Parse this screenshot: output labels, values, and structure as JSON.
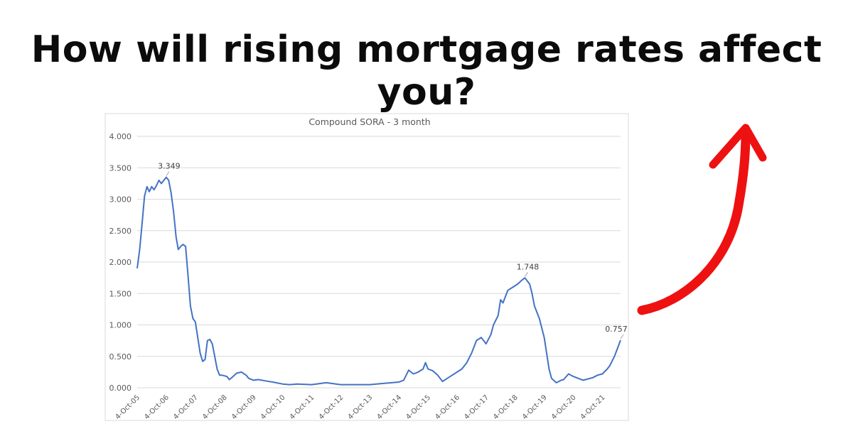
{
  "headline": "How will rising mortgage rates affect you?",
  "colors": {
    "line": "#4472c4",
    "arrow": "#ee1111",
    "grid": "#d9d9d9",
    "text": "#595959"
  },
  "chart_data": {
    "type": "line",
    "title": "Compound SORA - 3 month",
    "xlabel": "",
    "ylabel": "",
    "ylim": [
      0,
      4
    ],
    "yticks": [
      "0.000",
      "0.500",
      "1.000",
      "1.500",
      "2.000",
      "2.500",
      "3.000",
      "3.500",
      "4.000"
    ],
    "xlim": [
      "2005-10-04",
      "2022-05-20"
    ],
    "xticks": [
      "4-Oct-05",
      "4-Oct-06",
      "4-Oct-07",
      "4-Oct-08",
      "4-Oct-09",
      "4-Oct-10",
      "4-Oct-11",
      "4-Oct-12",
      "4-Oct-13",
      "4-Oct-14",
      "4-Oct-15",
      "4-Oct-16",
      "4-Oct-17",
      "4-Oct-18",
      "4-Oct-19",
      "4-Oct-20",
      "4-Oct-21"
    ],
    "grid": true,
    "legend": "none",
    "series": [
      {
        "x": [
          "2005-10-04",
          "2005-11-04",
          "2005-12-04",
          "2006-01-04",
          "2006-02-04",
          "2006-03-04",
          "2006-04-04",
          "2006-05-04",
          "2006-06-04",
          "2006-07-04",
          "2006-08-04",
          "2006-09-04",
          "2006-10-04",
          "2006-11-04",
          "2006-12-04",
          "2007-01-04",
          "2007-02-04",
          "2007-03-04",
          "2007-04-04",
          "2007-05-04",
          "2007-06-04",
          "2007-07-04",
          "2007-08-04",
          "2007-09-04",
          "2007-10-04",
          "2007-11-04",
          "2007-12-04",
          "2008-01-04",
          "2008-02-04",
          "2008-03-04",
          "2008-04-04",
          "2008-05-04",
          "2008-06-04",
          "2008-07-04",
          "2008-08-04",
          "2008-09-04",
          "2008-10-04",
          "2008-11-04",
          "2008-12-04",
          "2009-01-04",
          "2009-03-04",
          "2009-05-04",
          "2009-07-04",
          "2009-08-04",
          "2009-10-04",
          "2009-12-04",
          "2010-03-04",
          "2010-06-04",
          "2010-10-04",
          "2011-01-04",
          "2011-04-04",
          "2011-10-04",
          "2012-04-04",
          "2012-10-04",
          "2013-04-04",
          "2013-10-04",
          "2014-04-04",
          "2014-10-04",
          "2014-12-04",
          "2015-01-04",
          "2015-02-04",
          "2015-04-04",
          "2015-06-04",
          "2015-08-04",
          "2015-09-04",
          "2015-10-04",
          "2015-12-04",
          "2016-02-04",
          "2016-04-04",
          "2016-06-04",
          "2016-08-04",
          "2016-10-04",
          "2016-12-04",
          "2017-02-04",
          "2017-04-04",
          "2017-06-04",
          "2017-08-04",
          "2017-10-04",
          "2017-12-04",
          "2018-01-04",
          "2018-03-04",
          "2018-04-04",
          "2018-05-04",
          "2018-07-04",
          "2018-09-04",
          "2018-11-04",
          "2019-01-04",
          "2019-02-04",
          "2019-04-04",
          "2019-05-04",
          "2019-06-04",
          "2019-08-04",
          "2019-10-04",
          "2019-12-04",
          "2020-01-04",
          "2020-03-04",
          "2020-04-04",
          "2020-05-04",
          "2020-06-04",
          "2020-08-04",
          "2020-10-04",
          "2020-12-04",
          "2021-02-04",
          "2021-04-04",
          "2021-06-04",
          "2021-08-04",
          "2021-10-04",
          "2021-12-04",
          "2022-01-04",
          "2022-03-04",
          "2022-04-04",
          "2022-05-20"
        ],
        "values": [
          1.9,
          2.2,
          2.6,
          3.05,
          3.2,
          3.12,
          3.2,
          3.15,
          3.22,
          3.3,
          3.25,
          3.3,
          3.349,
          3.3,
          3.1,
          2.8,
          2.4,
          2.2,
          2.25,
          2.28,
          2.25,
          1.8,
          1.3,
          1.1,
          1.05,
          0.8,
          0.55,
          0.42,
          0.45,
          0.75,
          0.77,
          0.7,
          0.5,
          0.3,
          0.2,
          0.2,
          0.19,
          0.18,
          0.13,
          0.16,
          0.23,
          0.25,
          0.2,
          0.15,
          0.12,
          0.13,
          0.11,
          0.09,
          0.06,
          0.05,
          0.06,
          0.05,
          0.08,
          0.05,
          0.05,
          0.05,
          0.07,
          0.09,
          0.12,
          0.2,
          0.28,
          0.22,
          0.25,
          0.3,
          0.4,
          0.3,
          0.27,
          0.2,
          0.1,
          0.15,
          0.2,
          0.25,
          0.3,
          0.4,
          0.55,
          0.75,
          0.8,
          0.7,
          0.85,
          1.0,
          1.15,
          1.4,
          1.35,
          1.55,
          1.6,
          1.65,
          1.72,
          1.748,
          1.65,
          1.5,
          1.3,
          1.1,
          0.8,
          0.3,
          0.15,
          0.08,
          0.1,
          0.12,
          0.13,
          0.22,
          0.18,
          0.15,
          0.12,
          0.14,
          0.16,
          0.2,
          0.22,
          0.3,
          0.35,
          0.5,
          0.6,
          0.757
        ]
      }
    ],
    "annotations": [
      {
        "x": "2006-10-04",
        "y": 3.349,
        "text": "3.349"
      },
      {
        "x": "2019-02-04",
        "y": 1.748,
        "text": "1.748"
      },
      {
        "x": "2022-05-20",
        "y": 0.757,
        "text": "0.757"
      }
    ]
  }
}
